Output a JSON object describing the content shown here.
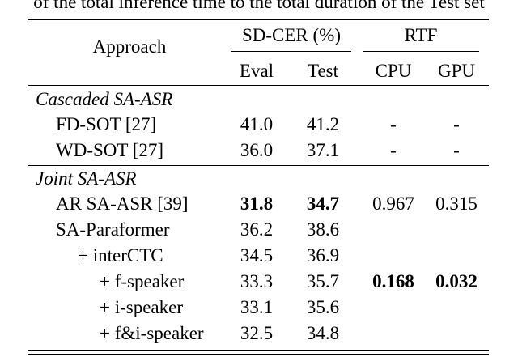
{
  "caption": "of the total inference time to the total duration of the Test set",
  "header": {
    "approach": "Approach",
    "sdcer": "SD-CER (%)",
    "rtf": "RTF",
    "eval": "Eval",
    "test": "Test",
    "cpu": "CPU",
    "gpu": "GPU"
  },
  "sections": [
    {
      "label": "Cascaded SA-ASR"
    },
    {
      "label": "Joint SA-ASR"
    }
  ],
  "rows": [
    {
      "approach": "FD-SOT [27]",
      "eval": "41.0",
      "test": "41.2",
      "cpu": "-",
      "gpu": "-"
    },
    {
      "approach": "WD-SOT [27]",
      "eval": "36.0",
      "test": "37.1",
      "cpu": "-",
      "gpu": "-"
    },
    {
      "approach": "AR SA-ASR [39]",
      "eval": "31.8",
      "test": "34.7",
      "cpu": "0.967",
      "gpu": "0.315"
    },
    {
      "approach": "SA-Paraformer",
      "eval": "36.2",
      "test": "38.6",
      "cpu": "",
      "gpu": ""
    },
    {
      "approach": "+ interCTC",
      "eval": "34.5",
      "test": "36.9",
      "cpu": "",
      "gpu": ""
    },
    {
      "approach": "+ f-speaker",
      "eval": "33.3",
      "test": "35.7",
      "cpu": "0.168",
      "gpu": "0.032"
    },
    {
      "approach": "+ i-speaker",
      "eval": "33.1",
      "test": "35.6",
      "cpu": "",
      "gpu": ""
    },
    {
      "approach": "+ f&i-speaker",
      "eval": "32.5",
      "test": "34.8",
      "cpu": "",
      "gpu": ""
    }
  ]
}
